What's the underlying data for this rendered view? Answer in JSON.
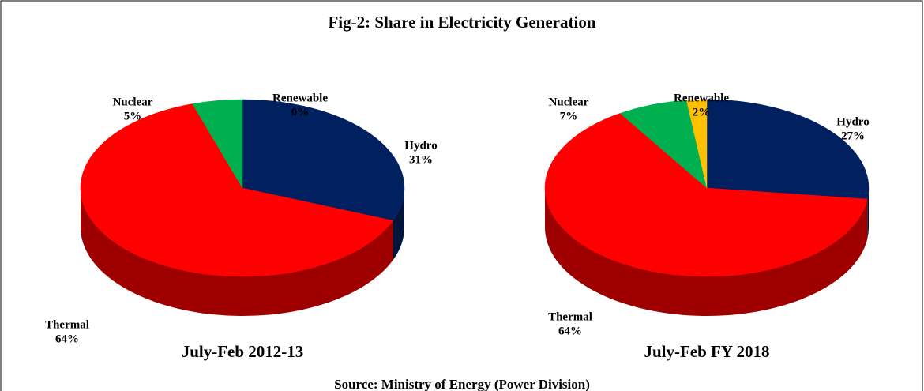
{
  "title": "Fig-2: Share in Electricity Generation",
  "source": "Source: Ministry of Energy (Power Division)",
  "chart_data": [
    {
      "type": "pie",
      "title": "July-Feb 2012-13",
      "categories": [
        "Hydro",
        "Thermal",
        "Nuclear",
        "Renewable"
      ],
      "values": [
        31,
        64,
        5,
        0
      ],
      "value_labels": [
        "31%",
        "64%",
        "5%",
        "0%"
      ],
      "colors": [
        "#002060",
        "#ff0000",
        "#00b050",
        "#ffc000"
      ]
    },
    {
      "type": "pie",
      "title": "July-Feb FY 2018",
      "categories": [
        "Hydro",
        "Thermal",
        "Nuclear",
        "Renewable"
      ],
      "values": [
        27,
        64,
        7,
        2
      ],
      "value_labels": [
        "27%",
        "64%",
        "7%",
        "2%"
      ],
      "colors": [
        "#002060",
        "#ff0000",
        "#00b050",
        "#ffc000"
      ]
    }
  ]
}
